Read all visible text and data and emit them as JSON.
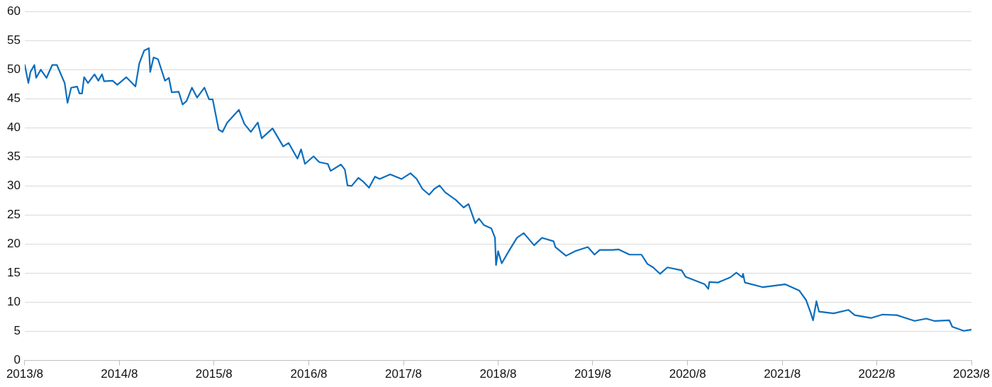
{
  "chart_data": {
    "type": "line",
    "x": [
      "2013-08-01",
      "2013-08-15",
      "2013-08-23",
      "2013-09-07",
      "2013-09-14",
      "2013-10-02",
      "2013-10-24",
      "2013-11-15",
      "2013-12-03",
      "2014-01-02",
      "2014-01-13",
      "2014-01-27",
      "2014-02-19",
      "2014-02-28",
      "2014-03-10",
      "2014-03-18",
      "2014-04-02",
      "2014-04-27",
      "2014-05-12",
      "2014-05-26",
      "2014-06-03",
      "2014-07-06",
      "2014-07-24",
      "2014-08-28",
      "2014-10-02",
      "2014-10-17",
      "2014-11-05",
      "2014-11-23",
      "2014-11-28",
      "2014-12-11",
      "2014-12-28",
      "2015-01-24",
      "2015-02-08",
      "2015-02-19",
      "2015-03-18",
      "2015-04-02",
      "2015-04-17",
      "2015-05-08",
      "2015-05-28",
      "2015-06-25",
      "2015-07-13",
      "2015-07-27",
      "2015-08-19",
      "2015-09-03",
      "2015-09-21",
      "2015-11-05",
      "2015-11-26",
      "2015-12-21",
      "2016-01-17",
      "2016-02-01",
      "2016-03-14",
      "2016-04-24",
      "2016-05-15",
      "2016-06-18",
      "2016-07-02",
      "2016-07-17",
      "2016-08-19",
      "2016-09-10",
      "2016-10-13",
      "2016-10-24",
      "2016-12-03",
      "2016-12-18",
      "2016-12-28",
      "2017-01-13",
      "2017-02-08",
      "2017-02-28",
      "2017-03-21",
      "2017-04-13",
      "2017-05-01",
      "2017-06-11",
      "2017-07-24",
      "2017-08-28",
      "2017-09-21",
      "2017-10-13",
      "2017-11-08",
      "2017-11-28",
      "2017-12-18",
      "2018-01-09",
      "2018-02-19",
      "2018-03-21",
      "2018-04-09",
      "2018-05-05",
      "2018-05-19",
      "2018-06-07",
      "2018-07-06",
      "2018-07-20",
      "2018-07-24",
      "2018-08-01",
      "2018-08-15",
      "2018-09-14",
      "2018-10-13",
      "2018-11-08",
      "2018-12-18",
      "2019-01-17",
      "2019-03-03",
      "2019-03-10",
      "2019-04-20",
      "2019-05-26",
      "2019-07-13",
      "2019-08-08",
      "2019-08-28",
      "2019-10-17",
      "2019-11-08",
      "2019-12-21",
      "2020-02-05",
      "2020-02-28",
      "2020-03-21",
      "2020-04-17",
      "2020-05-15",
      "2020-07-09",
      "2020-07-24",
      "2020-10-06",
      "2020-10-20",
      "2020-10-24",
      "2020-11-26",
      "2021-01-13",
      "2021-02-05",
      "2021-02-28",
      "2021-03-03",
      "2021-03-10",
      "2021-05-19",
      "2021-08-12",
      "2021-10-06",
      "2021-11-01",
      "2021-11-19",
      "2021-11-28",
      "2021-12-11",
      "2021-12-21",
      "2022-02-15",
      "2022-04-13",
      "2022-05-08",
      "2022-07-09",
      "2022-08-23",
      "2022-10-17",
      "2022-12-25",
      "2023-02-08",
      "2023-03-10",
      "2023-05-08",
      "2023-05-19",
      "2023-07-02",
      "2023-08-01"
    ],
    "series": [
      {
        "color": "#0a6ebd",
        "values": [
          50.8,
          47.7,
          49.6,
          50.8,
          48.6,
          50.0,
          48.6,
          50.8,
          50.8,
          47.7,
          44.3,
          46.9,
          47.1,
          45.9,
          45.9,
          48.7,
          47.7,
          49.2,
          48.1,
          49.2,
          48.0,
          48.1,
          47.4,
          48.7,
          47.1,
          51.1,
          53.3,
          53.7,
          49.6,
          52.1,
          51.8,
          48.1,
          48.6,
          46.1,
          46.2,
          44.0,
          44.6,
          46.9,
          45.2,
          46.9,
          44.9,
          44.9,
          39.7,
          39.3,
          40.9,
          43.1,
          40.7,
          39.3,
          40.9,
          38.2,
          39.9,
          36.8,
          37.4,
          34.7,
          36.3,
          33.8,
          35.1,
          34.1,
          33.8,
          32.6,
          33.7,
          32.8,
          30.1,
          30.0,
          31.4,
          30.7,
          29.7,
          31.6,
          31.2,
          32.0,
          31.2,
          32.2,
          31.2,
          29.5,
          28.5,
          29.5,
          30.1,
          28.9,
          27.6,
          26.3,
          26.9,
          23.6,
          24.4,
          23.3,
          22.7,
          21.1,
          16.4,
          18.8,
          16.7,
          19.0,
          21.1,
          21.9,
          19.8,
          21.1,
          20.5,
          19.5,
          18.0,
          18.8,
          19.5,
          18.2,
          19.0,
          19.0,
          19.1,
          18.2,
          18.2,
          16.6,
          16.0,
          14.9,
          16.0,
          15.5,
          14.4,
          13.1,
          12.3,
          13.5,
          13.4,
          14.3,
          15.1,
          14.3,
          14.9,
          13.4,
          12.6,
          13.1,
          12.0,
          10.4,
          8.2,
          6.9,
          10.2,
          8.4,
          8.1,
          8.7,
          7.8,
          7.3,
          7.9,
          7.8,
          6.8,
          7.2,
          6.8,
          6.9,
          5.8,
          5.1,
          5.3
        ]
      }
    ],
    "xlim": [
      "2013-08",
      "2023-08"
    ],
    "xticks": [
      {
        "value": "2013-08",
        "label": "2013/8"
      },
      {
        "value": "2014-08",
        "label": "2014/8"
      },
      {
        "value": "2015-08",
        "label": "2015/8"
      },
      {
        "value": "2016-08",
        "label": "2016/8"
      },
      {
        "value": "2017-08",
        "label": "2017/8"
      },
      {
        "value": "2018-08",
        "label": "2018/8"
      },
      {
        "value": "2019-08",
        "label": "2019/8"
      },
      {
        "value": "2020-08",
        "label": "2020/8"
      },
      {
        "value": "2021-08",
        "label": "2021/8"
      },
      {
        "value": "2022-08",
        "label": "2022/8"
      },
      {
        "value": "2023-08",
        "label": "2023/8"
      }
    ],
    "ylim": [
      0,
      60
    ],
    "yticks": [
      0,
      5,
      10,
      15,
      20,
      25,
      30,
      35,
      40,
      45,
      50,
      55,
      60
    ],
    "grid": "y",
    "marker": "none",
    "line_style": "solid",
    "legend": false
  }
}
